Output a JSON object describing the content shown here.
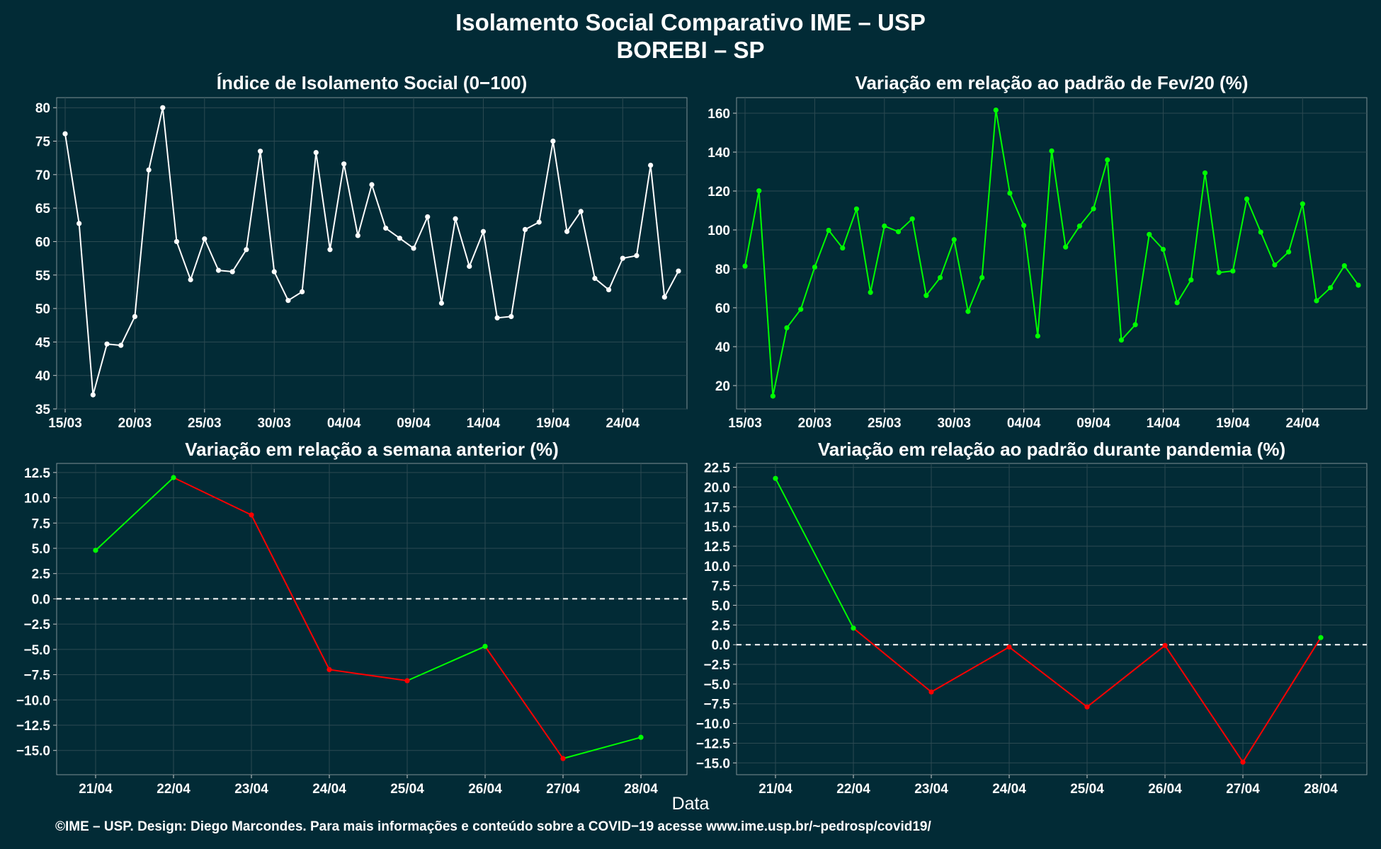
{
  "header": {
    "title": "Isolamento Social Comparativo IME – USP",
    "subtitle": "BOREBI – SP"
  },
  "footer": {
    "xlabel": "Data",
    "credit": "©IME – USP. Design: Diego Marcondes. Para mais informações e conteúdo sobre a COVID−19 acesse www.ime.usp.br/~pedrosp/covid19/"
  },
  "colors": {
    "background": "#022b36",
    "grid": "#2c4a52",
    "series_white": "#ffffff",
    "positive": "#00ff00",
    "negative": "#ff0000",
    "zero_line": "#ffffff"
  },
  "chart_data": [
    {
      "type": "line",
      "title": "Índice de Isolamento Social (0−100)",
      "x_labels": [
        "15/03",
        "16/03",
        "17/03",
        "18/03",
        "19/03",
        "20/03",
        "21/03",
        "22/03",
        "23/03",
        "24/03",
        "25/03",
        "26/03",
        "27/03",
        "28/03",
        "29/03",
        "30/03",
        "31/03",
        "01/04",
        "02/04",
        "03/04",
        "04/04",
        "05/04",
        "06/04",
        "07/04",
        "08/04",
        "09/04",
        "10/04",
        "11/04",
        "12/04",
        "13/04",
        "14/04",
        "15/04",
        "16/04",
        "17/04",
        "18/04",
        "19/04",
        "20/04",
        "21/04",
        "22/04",
        "23/04",
        "24/04",
        "25/04",
        "26/04",
        "27/04",
        "28/04"
      ],
      "x_ticks": [
        "15/03",
        "20/03",
        "25/03",
        "30/03",
        "04/04",
        "09/04",
        "14/04",
        "19/04",
        "24/04"
      ],
      "values": [
        76.1,
        62.7,
        37.1,
        44.7,
        44.5,
        48.8,
        70.7,
        80.0,
        60.0,
        54.3,
        60.4,
        55.7,
        55.5,
        58.8,
        73.5,
        55.5,
        51.2,
        52.5,
        73.3,
        58.8,
        71.6,
        60.9,
        68.5,
        62.0,
        60.5,
        59.0,
        63.7,
        50.8,
        63.4,
        56.3,
        61.5,
        48.6,
        48.8,
        61.8,
        62.9,
        75.0,
        61.5,
        64.5,
        54.5,
        52.8,
        57.5,
        57.9,
        71.4,
        51.7,
        55.6
      ],
      "ylim": [
        35,
        81.5
      ],
      "yticks": [
        35,
        40,
        45,
        50,
        55,
        60,
        65,
        70,
        75,
        80
      ],
      "color": "#ffffff",
      "grid": true
    },
    {
      "type": "line",
      "title": "Variação em relação ao padrão de Fev/20 (%)",
      "x_labels": [
        "15/03",
        "16/03",
        "17/03",
        "18/03",
        "19/03",
        "20/03",
        "21/03",
        "22/03",
        "23/03",
        "24/03",
        "25/03",
        "26/03",
        "27/03",
        "28/03",
        "29/03",
        "30/03",
        "31/03",
        "01/04",
        "02/04",
        "03/04",
        "04/04",
        "05/04",
        "06/04",
        "07/04",
        "08/04",
        "09/04",
        "10/04",
        "11/04",
        "12/04",
        "13/04",
        "14/04",
        "15/04",
        "16/04",
        "17/04",
        "18/04",
        "19/04",
        "20/04",
        "21/04",
        "22/04",
        "23/04",
        "24/04",
        "25/04",
        "26/04",
        "27/04",
        "28/04"
      ],
      "x_ticks": [
        "15/03",
        "20/03",
        "25/03",
        "30/03",
        "04/04",
        "09/04",
        "14/04",
        "19/04",
        "24/04"
      ],
      "values": [
        81.4,
        120.1,
        14.6,
        49.7,
        59.2,
        80.9,
        99.8,
        90.7,
        110.8,
        67.9,
        102.0,
        99.1,
        105.7,
        66.3,
        75.5,
        95.0,
        58.1,
        75.5,
        161.6,
        118.9,
        102.3,
        45.5,
        140.6,
        91.2,
        102.0,
        110.9,
        136.0,
        43.4,
        51.3,
        97.7,
        90.0,
        62.6,
        74.3,
        129.3,
        78.1,
        78.9,
        115.9,
        98.9,
        82.0,
        88.7,
        113.4,
        63.6,
        70.3,
        81.6,
        71.6
      ],
      "ylim": [
        8,
        168
      ],
      "yticks": [
        20,
        40,
        60,
        80,
        100,
        120,
        140,
        160
      ],
      "color": "#00ff00",
      "grid": true
    },
    {
      "type": "line",
      "title": "Variação em relação a semana anterior (%)",
      "categories": [
        "21/04",
        "22/04",
        "23/04",
        "24/04",
        "25/04",
        "26/04",
        "27/04",
        "28/04"
      ],
      "values": [
        4.8,
        12.0,
        8.3,
        -7.0,
        -8.1,
        -4.7,
        -15.8,
        -13.7
      ],
      "ylim": [
        -17.4,
        13.4
      ],
      "yticks": [
        -15.0,
        -12.5,
        -10.0,
        -7.5,
        -5.0,
        -2.5,
        0.0,
        2.5,
        5.0,
        7.5,
        10.0,
        12.5
      ],
      "reference_line": 0,
      "color_rule": "green segments when rising, red when falling",
      "grid": true
    },
    {
      "type": "line",
      "title": "Variação em relação ao padrão durante pandemia (%)",
      "categories": [
        "21/04",
        "22/04",
        "23/04",
        "24/04",
        "25/04",
        "26/04",
        "27/04",
        "28/04"
      ],
      "values": [
        21.1,
        2.1,
        -6.0,
        -0.3,
        -7.9,
        -0.1,
        -14.9,
        0.9
      ],
      "ylim": [
        -16.5,
        23.0
      ],
      "yticks": [
        -15.0,
        -12.5,
        -10.0,
        -7.5,
        -5.0,
        -2.5,
        0.0,
        2.5,
        5.0,
        7.5,
        10.0,
        12.5,
        15.0,
        17.5,
        20.0,
        22.5
      ],
      "reference_line": 0,
      "color_rule": "green segments when above zero, red when below",
      "grid": true
    }
  ]
}
